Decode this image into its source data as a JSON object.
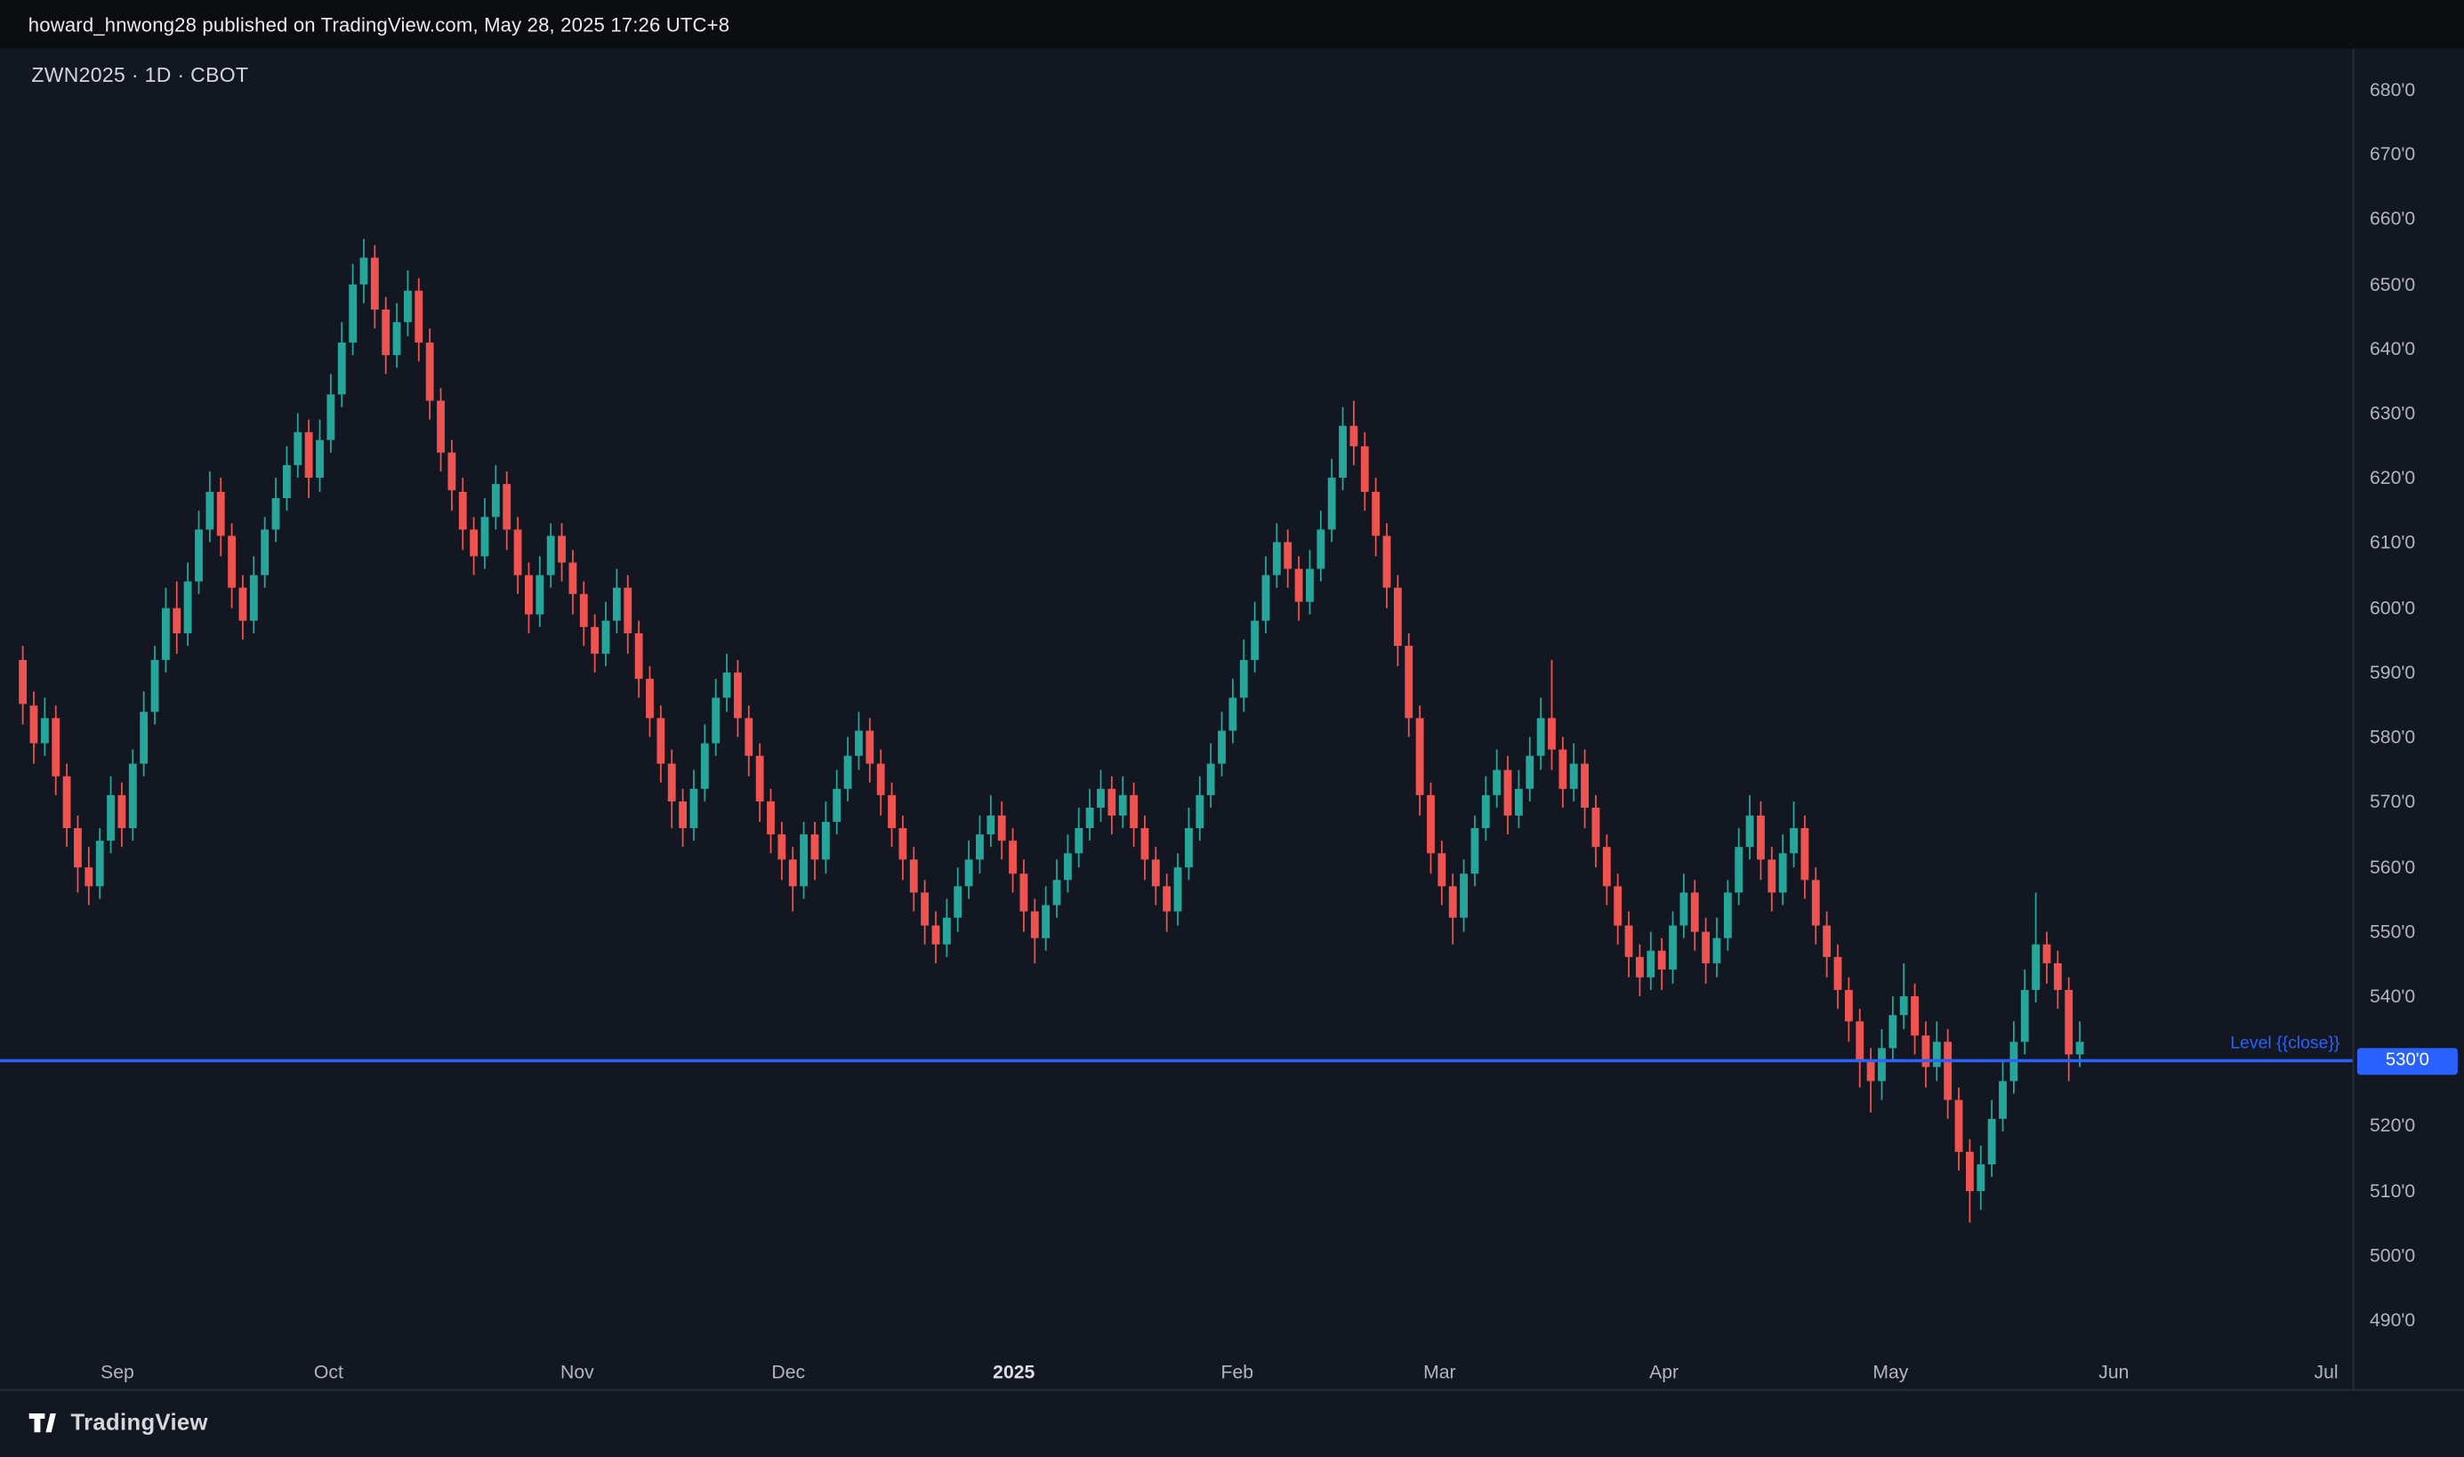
{
  "header": {
    "text": "howard_hnwong28 published on TradingView.com, May 28, 2025 17:26 UTC+8"
  },
  "chart": {
    "legend": "ZWN2025 · 1D · CBOT",
    "symbol": "ZWN2025",
    "interval": "1D",
    "exchange": "CBOT"
  },
  "footer": {
    "brand": "TradingView"
  },
  "chart_data": {
    "type": "candlestick",
    "title": "ZWN2025 · 1D · CBOT",
    "ylabel": "price",
    "ylim": [
      479,
      686
    ],
    "grid": false,
    "up_color": "#26a69a",
    "down_color": "#ef5350",
    "accent_color": "#2962ff",
    "price_ticks": [
      {
        "value": 680,
        "label": "680'0"
      },
      {
        "value": 670,
        "label": "670'0"
      },
      {
        "value": 660,
        "label": "660'0"
      },
      {
        "value": 650,
        "label": "650'0"
      },
      {
        "value": 640,
        "label": "640'0"
      },
      {
        "value": 630,
        "label": "630'0"
      },
      {
        "value": 620,
        "label": "620'0"
      },
      {
        "value": 610,
        "label": "610'0"
      },
      {
        "value": 600,
        "label": "600'0"
      },
      {
        "value": 590,
        "label": "590'0"
      },
      {
        "value": 580,
        "label": "580'0"
      },
      {
        "value": 570,
        "label": "570'0"
      },
      {
        "value": 560,
        "label": "560'0"
      },
      {
        "value": 550,
        "label": "550'0"
      },
      {
        "value": 540,
        "label": "540'0"
      },
      {
        "value": 530,
        "label": "530'0"
      },
      {
        "value": 520,
        "label": "520'0"
      },
      {
        "value": 510,
        "label": "510'0"
      },
      {
        "value": 500,
        "label": "500'0"
      },
      {
        "value": 490,
        "label": "490'0"
      }
    ],
    "time_ticks": [
      {
        "label": "Sep",
        "index": 8.6
      },
      {
        "label": "Oct",
        "index": 27.8
      },
      {
        "label": "Nov",
        "index": 50.4
      },
      {
        "label": "Dec",
        "index": 69.6
      },
      {
        "label": "2025",
        "index": 90.1,
        "emphasis": true
      },
      {
        "label": "Feb",
        "index": 110.4
      },
      {
        "label": "Mar",
        "index": 128.8
      },
      {
        "label": "Apr",
        "index": 149.2
      },
      {
        "label": "May",
        "index": 169.8
      },
      {
        "label": "Jun",
        "index": 190.1
      },
      {
        "label": "Jul",
        "index": 209.4
      }
    ],
    "level_line": {
      "price": 530,
      "label": "Level {{close}}",
      "axis_tag": "530'0",
      "color": "#2962ff"
    },
    "candles": [
      [
        592,
        594,
        582,
        585
      ],
      [
        585,
        587,
        576,
        579
      ],
      [
        579,
        586,
        577,
        583
      ],
      [
        583,
        585,
        571,
        574
      ],
      [
        574,
        576,
        563,
        566
      ],
      [
        566,
        568,
        556,
        560
      ],
      [
        560,
        563,
        554,
        557
      ],
      [
        557,
        566,
        555,
        564
      ],
      [
        564,
        574,
        562,
        571
      ],
      [
        571,
        573,
        563,
        566
      ],
      [
        566,
        578,
        564,
        576
      ],
      [
        576,
        587,
        574,
        584
      ],
      [
        584,
        594,
        582,
        592
      ],
      [
        592,
        603,
        590,
        600
      ],
      [
        600,
        604,
        593,
        596
      ],
      [
        596,
        607,
        594,
        604
      ],
      [
        604,
        615,
        602,
        612
      ],
      [
        612,
        621,
        610,
        618
      ],
      [
        618,
        620,
        608,
        611
      ],
      [
        611,
        613,
        600,
        603
      ],
      [
        603,
        605,
        595,
        598
      ],
      [
        598,
        608,
        596,
        605
      ],
      [
        605,
        614,
        603,
        612
      ],
      [
        612,
        620,
        610,
        617
      ],
      [
        617,
        625,
        615,
        622
      ],
      [
        622,
        630,
        620,
        627
      ],
      [
        627,
        629,
        617,
        620
      ],
      [
        620,
        629,
        618,
        626
      ],
      [
        626,
        636,
        624,
        633
      ],
      [
        633,
        644,
        631,
        641
      ],
      [
        641,
        653,
        639,
        650
      ],
      [
        650,
        657,
        647,
        654
      ],
      [
        654,
        656,
        643,
        646
      ],
      [
        646,
        648,
        636,
        639
      ],
      [
        639,
        647,
        637,
        644
      ],
      [
        644,
        652,
        642,
        649
      ],
      [
        649,
        651,
        638,
        641
      ],
      [
        641,
        643,
        629,
        632
      ],
      [
        632,
        634,
        621,
        624
      ],
      [
        624,
        626,
        615,
        618
      ],
      [
        618,
        620,
        609,
        612
      ],
      [
        612,
        614,
        605,
        608
      ],
      [
        608,
        617,
        606,
        614
      ],
      [
        614,
        622,
        612,
        619
      ],
      [
        619,
        621,
        609,
        612
      ],
      [
        612,
        614,
        602,
        605
      ],
      [
        605,
        607,
        596,
        599
      ],
      [
        599,
        608,
        597,
        605
      ],
      [
        605,
        613,
        603,
        611
      ],
      [
        611,
        613,
        604,
        607
      ],
      [
        607,
        609,
        599,
        602
      ],
      [
        602,
        604,
        594,
        597
      ],
      [
        597,
        599,
        590,
        593
      ],
      [
        593,
        601,
        591,
        598
      ],
      [
        598,
        606,
        596,
        603
      ],
      [
        603,
        605,
        593,
        596
      ],
      [
        596,
        598,
        586,
        589
      ],
      [
        589,
        591,
        580,
        583
      ],
      [
        583,
        585,
        573,
        576
      ],
      [
        576,
        578,
        566,
        570
      ],
      [
        570,
        572,
        563,
        566
      ],
      [
        566,
        575,
        564,
        572
      ],
      [
        572,
        582,
        570,
        579
      ],
      [
        579,
        589,
        577,
        586
      ],
      [
        586,
        593,
        584,
        590
      ],
      [
        590,
        592,
        580,
        583
      ],
      [
        583,
        585,
        574,
        577
      ],
      [
        577,
        579,
        567,
        570
      ],
      [
        570,
        572,
        562,
        565
      ],
      [
        565,
        567,
        558,
        561
      ],
      [
        561,
        563,
        553,
        557
      ],
      [
        557,
        567,
        555,
        565
      ],
      [
        565,
        567,
        558,
        561
      ],
      [
        561,
        570,
        559,
        567
      ],
      [
        567,
        575,
        565,
        572
      ],
      [
        572,
        580,
        570,
        577
      ],
      [
        577,
        584,
        575,
        581
      ],
      [
        581,
        583,
        573,
        576
      ],
      [
        576,
        578,
        568,
        571
      ],
      [
        571,
        573,
        563,
        566
      ],
      [
        566,
        568,
        558,
        561
      ],
      [
        561,
        563,
        553,
        556
      ],
      [
        556,
        558,
        548,
        551
      ],
      [
        551,
        553,
        545,
        548
      ],
      [
        548,
        555,
        546,
        552
      ],
      [
        552,
        560,
        550,
        557
      ],
      [
        557,
        564,
        555,
        561
      ],
      [
        561,
        568,
        559,
        565
      ],
      [
        565,
        571,
        563,
        568
      ],
      [
        568,
        570,
        561,
        564
      ],
      [
        564,
        566,
        556,
        559
      ],
      [
        559,
        561,
        550,
        553
      ],
      [
        553,
        555,
        545,
        549
      ],
      [
        549,
        557,
        547,
        554
      ],
      [
        554,
        561,
        552,
        558
      ],
      [
        558,
        565,
        556,
        562
      ],
      [
        562,
        569,
        560,
        566
      ],
      [
        566,
        572,
        564,
        569
      ],
      [
        569,
        575,
        567,
        572
      ],
      [
        572,
        574,
        565,
        568
      ],
      [
        568,
        574,
        566,
        571
      ],
      [
        571,
        573,
        563,
        566
      ],
      [
        566,
        568,
        558,
        561
      ],
      [
        561,
        563,
        554,
        557
      ],
      [
        557,
        559,
        550,
        553
      ],
      [
        553,
        562,
        551,
        560
      ],
      [
        560,
        569,
        558,
        566
      ],
      [
        566,
        574,
        564,
        571
      ],
      [
        571,
        579,
        569,
        576
      ],
      [
        576,
        584,
        574,
        581
      ],
      [
        581,
        589,
        579,
        586
      ],
      [
        586,
        595,
        584,
        592
      ],
      [
        592,
        601,
        590,
        598
      ],
      [
        598,
        608,
        596,
        605
      ],
      [
        605,
        613,
        603,
        610
      ],
      [
        610,
        612,
        603,
        606
      ],
      [
        606,
        608,
        598,
        601
      ],
      [
        601,
        609,
        599,
        606
      ],
      [
        606,
        615,
        604,
        612
      ],
      [
        612,
        623,
        610,
        620
      ],
      [
        620,
        631,
        618,
        628
      ],
      [
        628,
        632,
        622,
        625
      ],
      [
        625,
        627,
        615,
        618
      ],
      [
        618,
        620,
        608,
        611
      ],
      [
        611,
        613,
        600,
        603
      ],
      [
        603,
        605,
        591,
        594
      ],
      [
        594,
        596,
        580,
        583
      ],
      [
        583,
        585,
        568,
        571
      ],
      [
        571,
        573,
        559,
        562
      ],
      [
        562,
        564,
        554,
        557
      ],
      [
        557,
        559,
        548,
        552
      ],
      [
        552,
        561,
        550,
        559
      ],
      [
        559,
        568,
        557,
        566
      ],
      [
        566,
        574,
        564,
        571
      ],
      [
        571,
        578,
        569,
        575
      ],
      [
        575,
        577,
        565,
        568
      ],
      [
        568,
        575,
        566,
        572
      ],
      [
        572,
        580,
        570,
        577
      ],
      [
        577,
        586,
        575,
        583
      ],
      [
        583,
        592,
        575,
        578
      ],
      [
        578,
        580,
        569,
        572
      ],
      [
        572,
        579,
        570,
        576
      ],
      [
        576,
        578,
        566,
        569
      ],
      [
        569,
        571,
        560,
        563
      ],
      [
        563,
        565,
        554,
        557
      ],
      [
        557,
        559,
        548,
        551
      ],
      [
        551,
        553,
        543,
        546
      ],
      [
        546,
        548,
        540,
        543
      ],
      [
        543,
        550,
        541,
        547
      ],
      [
        547,
        549,
        541,
        544
      ],
      [
        544,
        553,
        542,
        551
      ],
      [
        551,
        559,
        549,
        556
      ],
      [
        556,
        558,
        547,
        550
      ],
      [
        550,
        552,
        542,
        545
      ],
      [
        545,
        552,
        543,
        549
      ],
      [
        549,
        558,
        547,
        556
      ],
      [
        556,
        566,
        554,
        563
      ],
      [
        563,
        571,
        561,
        568
      ],
      [
        568,
        570,
        558,
        561
      ],
      [
        561,
        563,
        553,
        556
      ],
      [
        556,
        565,
        554,
        562
      ],
      [
        562,
        570,
        560,
        566
      ],
      [
        566,
        568,
        555,
        558
      ],
      [
        558,
        560,
        548,
        551
      ],
      [
        551,
        553,
        543,
        546
      ],
      [
        546,
        548,
        538,
        541
      ],
      [
        541,
        543,
        533,
        536
      ],
      [
        536,
        538,
        526,
        530
      ],
      [
        530,
        532,
        522,
        527
      ],
      [
        527,
        535,
        524,
        532
      ],
      [
        532,
        540,
        530,
        537
      ],
      [
        537,
        545,
        535,
        540
      ],
      [
        540,
        542,
        531,
        534
      ],
      [
        534,
        536,
        526,
        529
      ],
      [
        529,
        536,
        527,
        533
      ],
      [
        533,
        535,
        521,
        524
      ],
      [
        524,
        526,
        513,
        516
      ],
      [
        516,
        518,
        505,
        510
      ],
      [
        510,
        517,
        507,
        514
      ],
      [
        514,
        524,
        512,
        521
      ],
      [
        521,
        530,
        519,
        527
      ],
      [
        527,
        536,
        525,
        533
      ],
      [
        533,
        544,
        531,
        541
      ],
      [
        541,
        556,
        539,
        548
      ],
      [
        548,
        550,
        542,
        545
      ],
      [
        545,
        547,
        538,
        541
      ],
      [
        541,
        543,
        527,
        531
      ],
      [
        531,
        536,
        529,
        533
      ]
    ]
  }
}
